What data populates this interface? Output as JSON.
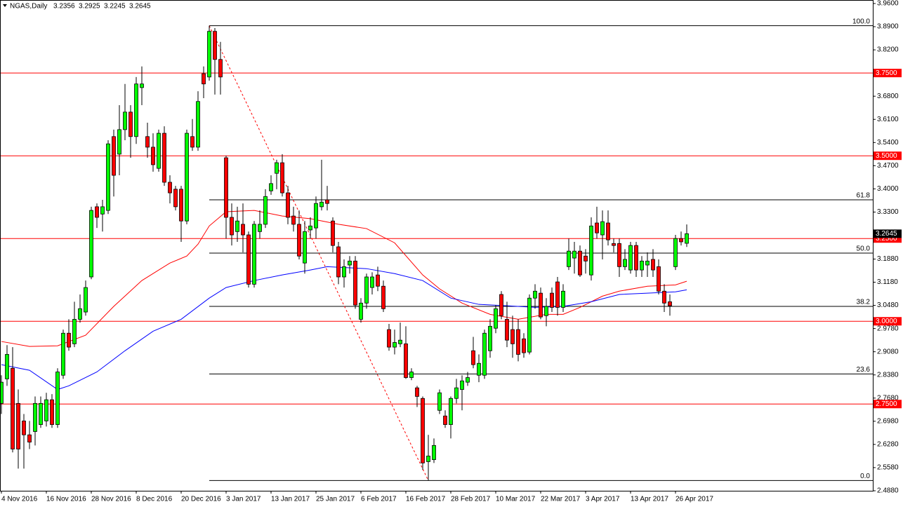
{
  "chart_data": {
    "type": "candlestick",
    "title": "NGAS,Daily",
    "categories": [
      "4 Nov 2016",
      null,
      null,
      null,
      null,
      null,
      null,
      null,
      "16 Nov 2016",
      null,
      null,
      null,
      null,
      null,
      null,
      null,
      "28 Nov 2016",
      null,
      null,
      null,
      null,
      null,
      null,
      null,
      "8 Dec 2016",
      null,
      null,
      null,
      null,
      null,
      null,
      null,
      "20 Dec 2016",
      null,
      null,
      null,
      null,
      null,
      null,
      null,
      "3 Jan 2017",
      null,
      null,
      null,
      null,
      null,
      null,
      null,
      "13 Jan 2017",
      null,
      null,
      null,
      null,
      null,
      null,
      null,
      "25 Jan 2017",
      null,
      null,
      null,
      null,
      null,
      null,
      null,
      "6 Feb 2017",
      null,
      null,
      null,
      null,
      null,
      null,
      null,
      "16 Feb 2017",
      null,
      null,
      null,
      null,
      null,
      null,
      null,
      "28 Feb 2017",
      null,
      null,
      null,
      null,
      null,
      null,
      null,
      "10 Mar 2017",
      null,
      null,
      null,
      null,
      null,
      null,
      null,
      "22 Mar 2017",
      null,
      null,
      null,
      null,
      null,
      null,
      null,
      "3 Apr 2017",
      null,
      null,
      null,
      null,
      null,
      null,
      null,
      "13 Apr 2017",
      null,
      null,
      null,
      null,
      null,
      null,
      null,
      "26 Apr 2017",
      null,
      null
    ],
    "open": [
      2.752,
      2.826,
      2.858,
      2.752,
      2.699,
      2.657,
      2.667,
      2.688,
      2.699,
      2.763,
      2.688,
      2.837,
      2.964,
      2.932,
      3.006,
      3.028,
      3.134,
      3.346,
      3.324,
      3.335,
      3.558,
      3.505,
      3.579,
      3.632,
      3.558,
      3.706,
      3.558,
      3.526,
      3.462,
      3.568,
      3.42,
      3.399,
      3.399,
      3.303,
      3.558,
      3.526,
      3.748,
      3.738,
      3.876,
      3.791,
      3.494,
      3.314,
      3.271,
      3.293,
      3.261,
      3.112,
      3.271,
      3.293,
      3.394,
      3.447,
      3.479,
      3.388,
      3.318,
      3.293,
      3.176,
      3.276,
      3.282,
      3.346,
      3.367,
      3.303,
      3.225,
      3.134,
      3.17,
      3.182,
      3.006,
      3.055,
      3.102,
      3.14,
      3.106,
      2.975,
      2.922,
      2.932,
      2.932,
      2.83,
      2.799,
      2.767,
      2.576,
      2.582,
      2.731,
      2.714,
      2.688,
      2.767,
      2.794,
      2.816,
      2.911,
      2.837,
      2.837,
      2.911,
      2.979,
      3.081,
      3.006,
      2.975,
      2.975,
      2.947,
      2.907,
      3.07,
      3.085,
      3.017,
      3.085,
      3.119,
      3.042,
      3.165,
      3.191,
      3.212,
      3.197,
      3.14,
      3.297,
      3.261,
      3.297,
      3.235,
      3.235,
      3.165,
      3.155,
      3.229,
      3.155,
      3.17,
      3.187,
      3.165,
      3.091,
      3.059,
      3.165,
      3.25,
      3.2356
    ],
    "high": [
      2.837,
      2.928,
      2.922,
      2.794,
      2.72,
      2.699,
      2.773,
      2.773,
      2.784,
      2.78,
      2.858,
      2.975,
      3.006,
      3.059,
      3.081,
      3.123,
      3.346,
      3.356,
      3.367,
      3.547,
      3.579,
      3.653,
      3.717,
      3.653,
      3.738,
      3.77,
      3.6,
      3.568,
      3.579,
      3.589,
      3.441,
      3.409,
      3.409,
      3.579,
      3.611,
      3.695,
      3.77,
      3.893,
      3.886,
      3.844,
      3.5,
      3.356,
      3.346,
      3.356,
      3.271,
      3.303,
      3.335,
      3.399,
      3.441,
      3.488,
      3.505,
      3.409,
      3.346,
      3.335,
      3.303,
      3.314,
      3.377,
      3.488,
      3.409,
      3.314,
      3.24,
      3.187,
      3.197,
      3.197,
      3.07,
      3.144,
      3.148,
      3.165,
      3.123,
      2.992,
      2.975,
      2.996,
      2.985,
      2.858,
      2.805,
      2.773,
      2.657,
      2.646,
      2.794,
      2.731,
      2.773,
      2.826,
      2.837,
      2.847,
      2.953,
      2.9,
      2.975,
      3.006,
      3.049,
      3.091,
      3.059,
      3.017,
      3.006,
      2.964,
      3.081,
      3.112,
      3.102,
      3.07,
      3.102,
      3.134,
      3.112,
      3.25,
      3.24,
      3.229,
      3.218,
      3.314,
      3.346,
      3.335,
      3.335,
      3.25,
      3.25,
      3.218,
      3.24,
      3.24,
      3.197,
      3.208,
      3.218,
      3.187,
      3.112,
      3.081,
      3.261,
      3.271,
      3.2925
    ],
    "low": [
      2.72,
      2.805,
      2.604,
      2.555,
      2.555,
      2.614,
      2.625,
      2.678,
      2.682,
      2.678,
      2.678,
      2.826,
      2.911,
      2.922,
      2.996,
      3.017,
      3.127,
      3.282,
      3.271,
      3.324,
      3.377,
      3.441,
      3.547,
      3.494,
      3.536,
      3.653,
      3.494,
      3.452,
      3.452,
      3.409,
      3.356,
      3.335,
      3.24,
      3.293,
      3.515,
      3.515,
      3.674,
      3.727,
      3.685,
      3.685,
      3.25,
      3.229,
      3.24,
      3.208,
      3.102,
      3.102,
      3.25,
      3.282,
      3.382,
      3.399,
      3.377,
      3.293,
      3.271,
      3.187,
      3.144,
      3.25,
      3.25,
      3.335,
      3.335,
      3.208,
      3.112,
      3.102,
      3.144,
      3.038,
      2.996,
      3.038,
      3.081,
      3.091,
      3.028,
      2.911,
      2.9,
      2.922,
      2.826,
      2.822,
      2.741,
      2.551,
      2.519,
      2.572,
      2.72,
      2.678,
      2.646,
      2.752,
      2.731,
      2.805,
      2.858,
      2.816,
      2.826,
      2.89,
      2.964,
      3.006,
      2.922,
      2.89,
      2.879,
      2.89,
      2.9,
      3.038,
      3.006,
      2.985,
      3.028,
      3.017,
      3.028,
      3.155,
      3.144,
      3.134,
      3.144,
      3.123,
      3.25,
      3.187,
      3.229,
      3.208,
      3.134,
      3.155,
      3.144,
      3.134,
      3.134,
      3.134,
      3.134,
      3.081,
      3.028,
      3.017,
      3.155,
      3.229,
      3.2245
    ],
    "close": [
      2.816,
      2.9,
      2.614,
      2.614,
      2.657,
      2.635,
      2.752,
      2.752,
      2.763,
      2.688,
      2.847,
      2.964,
      2.922,
      3.006,
      3.038,
      3.102,
      3.335,
      3.314,
      3.346,
      3.536,
      3.441,
      3.579,
      3.632,
      3.558,
      3.717,
      3.717,
      3.526,
      3.473,
      3.568,
      3.42,
      3.388,
      3.346,
      3.303,
      3.568,
      3.526,
      3.664,
      3.717,
      3.876,
      3.791,
      3.738,
      3.314,
      3.261,
      3.303,
      3.261,
      3.112,
      3.293,
      3.293,
      3.377,
      3.416,
      3.479,
      3.388,
      3.314,
      3.293,
      3.197,
      3.271,
      3.288,
      3.356,
      3.36,
      3.356,
      3.229,
      3.134,
      3.165,
      3.182,
      3.049,
      3.055,
      3.134,
      3.134,
      3.106,
      3.038,
      2.922,
      2.936,
      2.943,
      2.83,
      2.847,
      2.773,
      2.572,
      2.593,
      2.625,
      2.784,
      2.688,
      2.767,
      2.799,
      2.82,
      2.83,
      2.869,
      2.873,
      2.964,
      2.985,
      3.038,
      3.017,
      2.943,
      2.932,
      2.9,
      2.905,
      3.07,
      3.091,
      3.013,
      3.045,
      3.042,
      3.042,
      3.091,
      3.212,
      3.212,
      3.14,
      3.182,
      3.288,
      3.267,
      3.301,
      3.246,
      3.229,
      3.165,
      3.187,
      3.229,
      3.155,
      3.182,
      3.182,
      3.155,
      3.091,
      3.055,
      3.047,
      3.25,
      3.24,
      3.2645
    ],
    "up_color": "#00ff00",
    "down_color": "#ff0000",
    "ylim": [
      2.488,
      3.96
    ],
    "yticks": [
      {
        "value": 3.96,
        "label": "3.9600"
      },
      {
        "value": 3.89,
        "label": "3.8900"
      },
      {
        "value": 3.82,
        "label": "3.8200"
      },
      {
        "value": 3.68,
        "label": "3.6800"
      },
      {
        "value": 3.61,
        "label": "3.6100"
      },
      {
        "value": 3.54,
        "label": "3.5400"
      },
      {
        "value": 3.47,
        "label": "3.4700"
      },
      {
        "value": 3.4,
        "label": "3.4000"
      },
      {
        "value": 3.33,
        "label": "3.3300"
      },
      {
        "value": 3.188,
        "label": "3.1880"
      },
      {
        "value": 3.118,
        "label": "3.1180"
      },
      {
        "value": 3.048,
        "label": "3.0480"
      },
      {
        "value": 2.978,
        "label": "2.9780"
      },
      {
        "value": 2.908,
        "label": "2.9080"
      },
      {
        "value": 2.838,
        "label": "2.8380"
      },
      {
        "value": 2.768,
        "label": "2.7680"
      },
      {
        "value": 2.698,
        "label": "2.6980"
      },
      {
        "value": 2.628,
        "label": "2.6280"
      },
      {
        "value": 2.558,
        "label": "2.5580"
      },
      {
        "value": 2.488,
        "label": "2.4880"
      }
    ],
    "hline_color": "#ff0000",
    "hlines": [
      {
        "value": 3.75,
        "label": "3.7500"
      },
      {
        "value": 3.5,
        "label": "3.5000"
      },
      {
        "value": 3.25,
        "label": "3.2500"
      },
      {
        "value": 3.0,
        "label": "3.0000"
      },
      {
        "value": 2.75,
        "label": "2.7500"
      }
    ],
    "moving_averages": [
      {
        "color": "#ff0000",
        "x": [
          0,
          5,
          10,
          15,
          20,
          25,
          30,
          33,
          35,
          37,
          40,
          45,
          50,
          55,
          60,
          65,
          70,
          75,
          78,
          82,
          87,
          92,
          97,
          100,
          103,
          107,
          110,
          115,
          120,
          122
        ],
        "values": [
          2.939,
          2.924,
          2.926,
          2.958,
          3.045,
          3.123,
          3.176,
          3.197,
          3.233,
          3.288,
          3.331,
          3.335,
          3.318,
          3.31,
          3.293,
          3.28,
          3.237,
          3.14,
          3.098,
          3.055,
          3.021,
          3.006,
          3.021,
          3.021,
          3.042,
          3.076,
          3.091,
          3.106,
          3.11,
          3.121
        ]
      },
      {
        "color": "#0000ff",
        "x": [
          0,
          5,
          10,
          12,
          17,
          22,
          27,
          32,
          37,
          40,
          45,
          50,
          55,
          58,
          65,
          70,
          75,
          80,
          85,
          90,
          95,
          100,
          105,
          110,
          115,
          120,
          122
        ],
        "values": [
          2.869,
          2.852,
          2.794,
          2.805,
          2.847,
          2.911,
          2.97,
          3.006,
          3.07,
          3.102,
          3.123,
          3.14,
          3.155,
          3.165,
          3.159,
          3.144,
          3.123,
          3.07,
          3.051,
          3.047,
          3.042,
          3.045,
          3.059,
          3.081,
          3.085,
          3.089,
          3.095
        ]
      }
    ],
    "fibonacci": {
      "color": "#000000",
      "trend_color": "#ff0000",
      "start_index": 37,
      "end_index": 76,
      "levels": [
        {
          "label": "100.0",
          "value": 3.893
        },
        {
          "label": "61.8",
          "value": 3.367
        },
        {
          "label": "50.0",
          "value": 3.206
        },
        {
          "label": "38.2",
          "value": 3.045
        },
        {
          "label": "23.6",
          "value": 2.841
        },
        {
          "label": "0.0",
          "value": 2.519
        }
      ]
    }
  }
}
